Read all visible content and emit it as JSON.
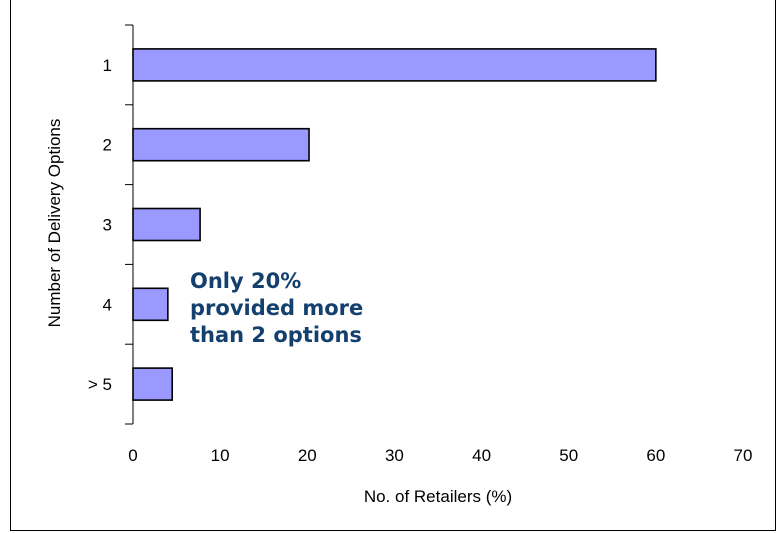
{
  "chart_data": {
    "type": "bar",
    "orientation": "horizontal",
    "categories": [
      "1",
      "2",
      "3",
      "4",
      "> 5"
    ],
    "values": [
      60,
      20.2,
      7.7,
      4,
      4.5
    ],
    "xlabel": "No. of Retailers (%)",
    "ylabel": "Number of Delivery Options",
    "xlim": [
      0,
      70
    ],
    "xticks": [
      0,
      10,
      20,
      30,
      40,
      50,
      60,
      70
    ],
    "grid": false,
    "bar_color": "#9999ff",
    "annotation": "Only 20%\nprovided more\nthan 2 options",
    "annotation_color": "#14406e"
  }
}
